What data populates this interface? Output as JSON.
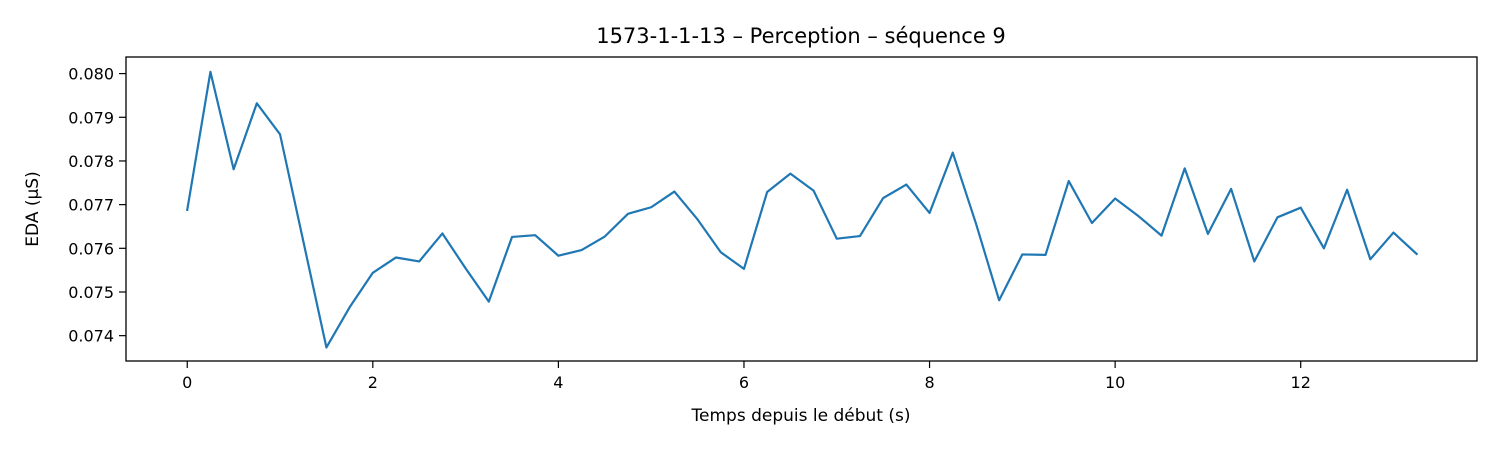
{
  "chart_data": {
    "type": "line",
    "title": "1573-1-1-13 – Perception – séquence 9",
    "xlabel": "Temps depuis le début (s)",
    "ylabel": "EDA (µS)",
    "xlim": [
      -0.66,
      13.9
    ],
    "ylim": [
      0.07342,
      0.08038
    ],
    "x_ticks": [
      0,
      2,
      4,
      6,
      8,
      10,
      12
    ],
    "x_tick_labels": [
      "0",
      "2",
      "4",
      "6",
      "8",
      "10",
      "12"
    ],
    "y_ticks": [
      0.074,
      0.075,
      0.076,
      0.077,
      0.078,
      0.079,
      0.08
    ],
    "y_tick_labels": [
      "0.074",
      "0.075",
      "0.076",
      "0.077",
      "0.078",
      "0.079",
      "0.080"
    ],
    "grid": false,
    "series": [
      {
        "color": "#1f77b4",
        "x": [
          0,
          0.25,
          0.5,
          0.75,
          1.0,
          1.25,
          1.5,
          1.75,
          2.0,
          2.25,
          2.5,
          2.75,
          3.0,
          3.25,
          3.5,
          3.75,
          4.0,
          4.25,
          4.5,
          4.75,
          5.0,
          5.25,
          5.5,
          5.75,
          6.0,
          6.25,
          6.5,
          6.75,
          7.0,
          7.25,
          7.5,
          7.75,
          8.0,
          8.25,
          8.5,
          8.75,
          9.0,
          9.25,
          9.5,
          9.75,
          10.0,
          10.25,
          10.5,
          10.75,
          11.0,
          11.25,
          11.5,
          11.75,
          12.0,
          12.25,
          12.5,
          12.75,
          13.0,
          13.25
        ],
        "values": [
          0.07688,
          0.08004,
          0.07781,
          0.07932,
          0.07861,
          0.07617,
          0.07373,
          0.07465,
          0.07544,
          0.07579,
          0.0757,
          0.07634,
          0.07554,
          0.07478,
          0.07626,
          0.0763,
          0.07583,
          0.07596,
          0.07627,
          0.07679,
          0.07694,
          0.0773,
          0.07666,
          0.07591,
          0.07553,
          0.07729,
          0.07771,
          0.07732,
          0.07622,
          0.07628,
          0.07715,
          0.07746,
          0.07681,
          0.07819,
          0.07657,
          0.07481,
          0.07586,
          0.07585,
          0.07754,
          0.07658,
          0.07714,
          0.07674,
          0.07629,
          0.07783,
          0.07633,
          0.07736,
          0.0757,
          0.07671,
          0.07693,
          0.076,
          0.07734,
          0.07575,
          0.07636,
          0.07587
        ]
      }
    ]
  }
}
